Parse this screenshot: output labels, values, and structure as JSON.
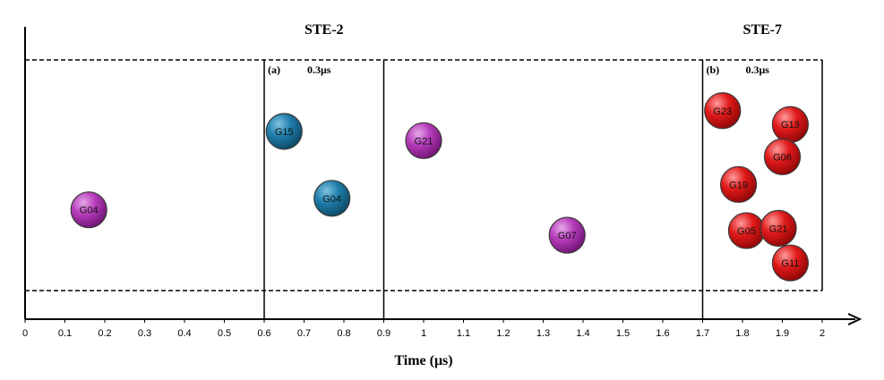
{
  "chart_data": {
    "type": "scatter",
    "xlabel": "Time (μs)",
    "xlim": [
      0,
      2
    ],
    "x_ticks": [
      "0",
      "0.1",
      "0.2",
      "0.3",
      "0.4",
      "0.5",
      "0.6",
      "0.7",
      "0.8",
      "0.9",
      "1",
      "1.1",
      "1.2",
      "1.3",
      "1.4",
      "1.5",
      "1.6",
      "1.7",
      "1.8",
      "1.9",
      "2"
    ],
    "dividers": [
      0.6,
      0.9,
      1.7
    ],
    "blocks": [
      {
        "title": "STE-2",
        "center_x": 0.75
      },
      {
        "title": "STE-7",
        "center_x": 1.85
      }
    ],
    "panels": [
      {
        "label": "(a)",
        "span": "0.3μs",
        "x_start": 0.6,
        "x_end": 0.9
      },
      {
        "label": "(b)",
        "span": "0.3μs",
        "x_start": 1.7,
        "x_end": 2.0
      }
    ],
    "colors": {
      "purple": "#9b2a9f",
      "blue": "#1a6f96",
      "red": "#d11414"
    },
    "points": [
      {
        "label": "G04",
        "x": 0.16,
        "y": 0.35,
        "color": "purple"
      },
      {
        "label": "G15",
        "x": 0.65,
        "y": 0.69,
        "color": "blue"
      },
      {
        "label": "G04",
        "x": 0.77,
        "y": 0.4,
        "color": "blue"
      },
      {
        "label": "G21",
        "x": 1.0,
        "y": 0.65,
        "color": "purple"
      },
      {
        "label": "G07",
        "x": 1.36,
        "y": 0.24,
        "color": "purple"
      },
      {
        "label": "G23",
        "x": 1.75,
        "y": 0.78,
        "color": "red"
      },
      {
        "label": "G13",
        "x": 1.92,
        "y": 0.72,
        "color": "red"
      },
      {
        "label": "G06",
        "x": 1.9,
        "y": 0.58,
        "color": "red"
      },
      {
        "label": "G19",
        "x": 1.79,
        "y": 0.46,
        "color": "red"
      },
      {
        "label": "G05",
        "x": 1.81,
        "y": 0.26,
        "color": "red"
      },
      {
        "label": "G21",
        "x": 1.89,
        "y": 0.27,
        "color": "red"
      },
      {
        "label": "G11",
        "x": 1.92,
        "y": 0.12,
        "color": "red"
      }
    ]
  }
}
